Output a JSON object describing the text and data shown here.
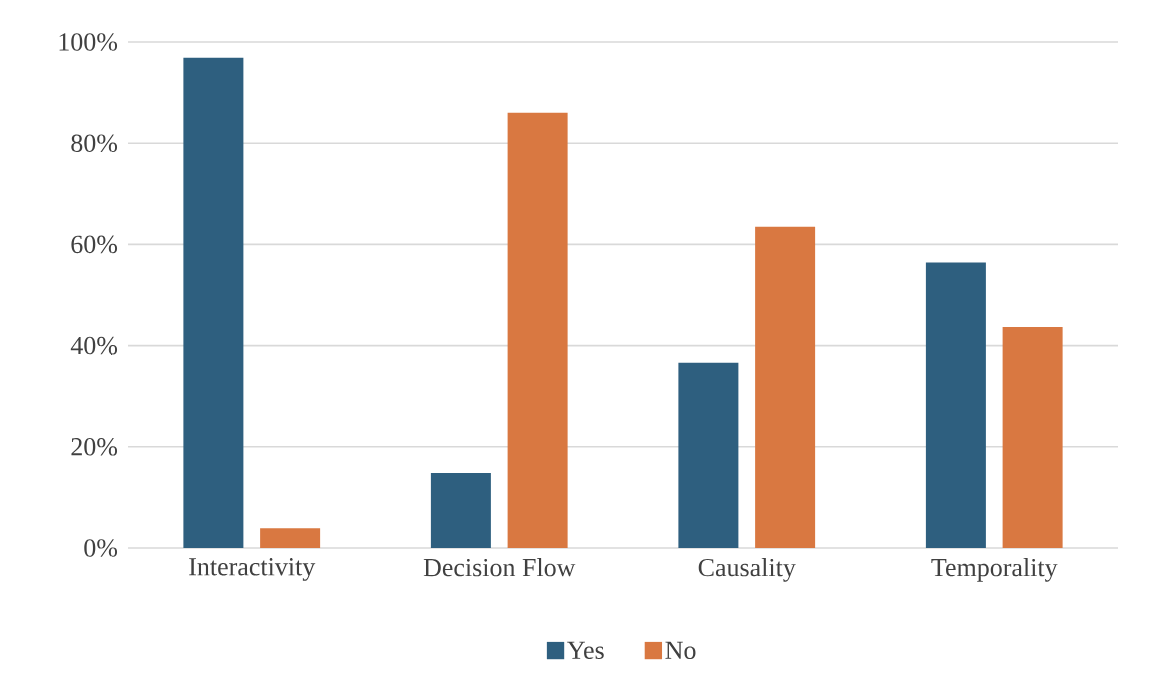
{
  "chart_data": {
    "type": "bar",
    "categories": [
      "Interactivity",
      "Decision Flow",
      "Causality",
      "Temporality"
    ],
    "series": [
      {
        "name": "Yes",
        "color": "#2e5f7f",
        "values": [
          96.9,
          14.8,
          36.6,
          56.4
        ]
      },
      {
        "name": "No",
        "color": "#d97841",
        "values": [
          3.9,
          86.0,
          63.5,
          43.7
        ]
      }
    ],
    "ylim": [
      0,
      100
    ],
    "yticks": [
      {
        "value": 0,
        "label": "0%"
      },
      {
        "value": 20,
        "label": "20%"
      },
      {
        "value": 40,
        "label": "40%"
      },
      {
        "value": 60,
        "label": "60%"
      },
      {
        "value": 80,
        "label": "80%"
      },
      {
        "value": 100,
        "label": "100%"
      }
    ],
    "grid": "y",
    "legend": "bottom"
  }
}
